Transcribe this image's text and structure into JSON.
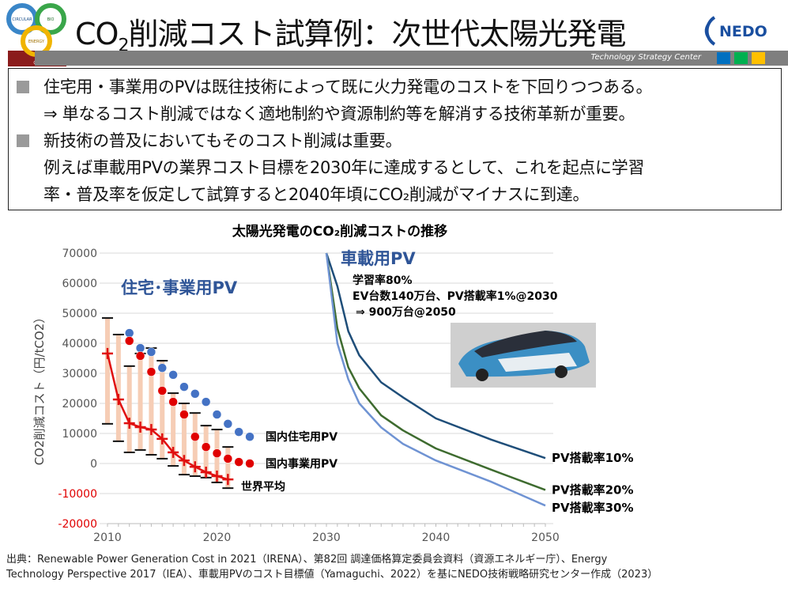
{
  "header": {
    "title_prefix": "CO",
    "title_sub": "2",
    "title_rest": "削減コスト試算例：次世代太陽光発電",
    "org_logo": "NEDO",
    "band_text": "Technology Strategy Center",
    "band_colors": [
      "#0070c0",
      "#00b050",
      "#ffc000"
    ],
    "corner_logo_words": [
      "CIRCULAR",
      "BIO",
      "ENERGY",
      "GX"
    ]
  },
  "summary": {
    "lines": [
      {
        "bullet": true,
        "text": "住宅用・事業用のPVは既往技術によって既に火力発電のコストを下回りつつある。"
      },
      {
        "bullet": false,
        "text": "⇒ 単なるコスト削減ではなく適地制約や資源制約等を解消する技術革新が重要。"
      },
      {
        "bullet": true,
        "text": "新技術の普及においてもそのコスト削減は重要。"
      },
      {
        "bullet": false,
        "text": "例えば車載用PVの業界コスト目標を2030年に達成するとして、これを起点に学習"
      },
      {
        "bullet": false,
        "text": "率・普及率を仮定して試算すると2040年頃にCO₂削減がマイナスに到達。"
      }
    ]
  },
  "chart_data": {
    "type": "line",
    "title": "太陽光発電のCO₂削減コストの推移",
    "ylabel": "CO2削減コスト（円/tCO2）",
    "xlabel": "",
    "xlim": [
      2010,
      2050
    ],
    "ylim": [
      -20000,
      70000
    ],
    "xticks": [
      "2010",
      "2020",
      "2030",
      "2040",
      "2050"
    ],
    "yticks": [
      "70000",
      "60000",
      "50000",
      "40000",
      "30000",
      "20000",
      "10000",
      "0",
      "-10000",
      "-20000"
    ],
    "negative_tick_color": "#e00000",
    "grid": true,
    "annotations": {
      "residential_group": "住宅･事業用PV",
      "vehicle_group": "車載用PV",
      "vehicle_notes": [
        "学習率80%",
        "EV台数140万台、PV搭載率1%@2030",
        "⇒ 900万台@2050"
      ]
    },
    "series": [
      {
        "name": "国内住宅用PV",
        "kind": "dots",
        "color": "#4472c4",
        "x": [
          2012,
          2013,
          2014,
          2015,
          2016,
          2017,
          2018,
          2019,
          2020,
          2021,
          2022,
          2023
        ],
        "y": [
          43400,
          38400,
          37100,
          31800,
          29500,
          25500,
          23200,
          20500,
          16300,
          13200,
          10500,
          8900
        ]
      },
      {
        "name": "国内事業用PV",
        "kind": "dots",
        "color": "#e00000",
        "x": [
          2012,
          2013,
          2014,
          2015,
          2016,
          2017,
          2018,
          2019,
          2020,
          2021,
          2022,
          2023
        ],
        "y": [
          40800,
          35800,
          30500,
          24200,
          20500,
          16300,
          8900,
          5500,
          3400,
          1600,
          500,
          0
        ]
      },
      {
        "name": "世界平均",
        "kind": "line-cross",
        "color": "#e01010",
        "range_color": "#f6cdb5",
        "x": [
          2010,
          2011,
          2012,
          2013,
          2014,
          2015,
          2016,
          2017,
          2018,
          2019,
          2020,
          2021
        ],
        "y": [
          36600,
          21300,
          13400,
          12100,
          11300,
          8200,
          3700,
          1000,
          -1100,
          -2900,
          -4200,
          -5300
        ],
        "high": [
          48400,
          42900,
          32400,
          36600,
          38400,
          34200,
          23400,
          20000,
          16800,
          12600,
          11300,
          5500
        ],
        "low": [
          13200,
          7400,
          3700,
          4500,
          2900,
          1600,
          -800,
          -3700,
          -4200,
          -4700,
          -6300,
          -8200
        ]
      },
      {
        "name": "PV搭載率10%",
        "kind": "line",
        "color": "#1f4e79",
        "x": [
          2030,
          2031,
          2032,
          2033,
          2035,
          2037,
          2040,
          2045,
          2050
        ],
        "y": [
          70000,
          59000,
          44000,
          36000,
          27000,
          22000,
          15000,
          8000,
          1800
        ]
      },
      {
        "name": "PV搭載率20%",
        "kind": "line",
        "color": "#3e6b2f",
        "x": [
          2030,
          2031,
          2032,
          2033,
          2035,
          2037,
          2040,
          2045,
          2050
        ],
        "y": [
          70000,
          45000,
          32000,
          25000,
          16000,
          11000,
          5000,
          -2000,
          -8800
        ]
      },
      {
        "name": "PV搭載率30%",
        "kind": "line",
        "color": "#6f93d3",
        "x": [
          2030,
          2031,
          2032,
          2033,
          2035,
          2037,
          2040,
          2045,
          2050
        ],
        "y": [
          70000,
          40000,
          28000,
          20000,
          12000,
          6500,
          1000,
          -6000,
          -14000
        ]
      }
    ]
  },
  "footer": {
    "lines": [
      "出典：Renewable Power Generation Cost in 2021（IRENA）、第82回 調達価格算定委員会資料（資源エネルギー庁）、Energy",
      "Technology Perspective 2017（IEA）、車載用PVのコスト目標値（Yamaguchi、2022）を基にNEDO技術戦略研究センター作成（2023）"
    ]
  }
}
